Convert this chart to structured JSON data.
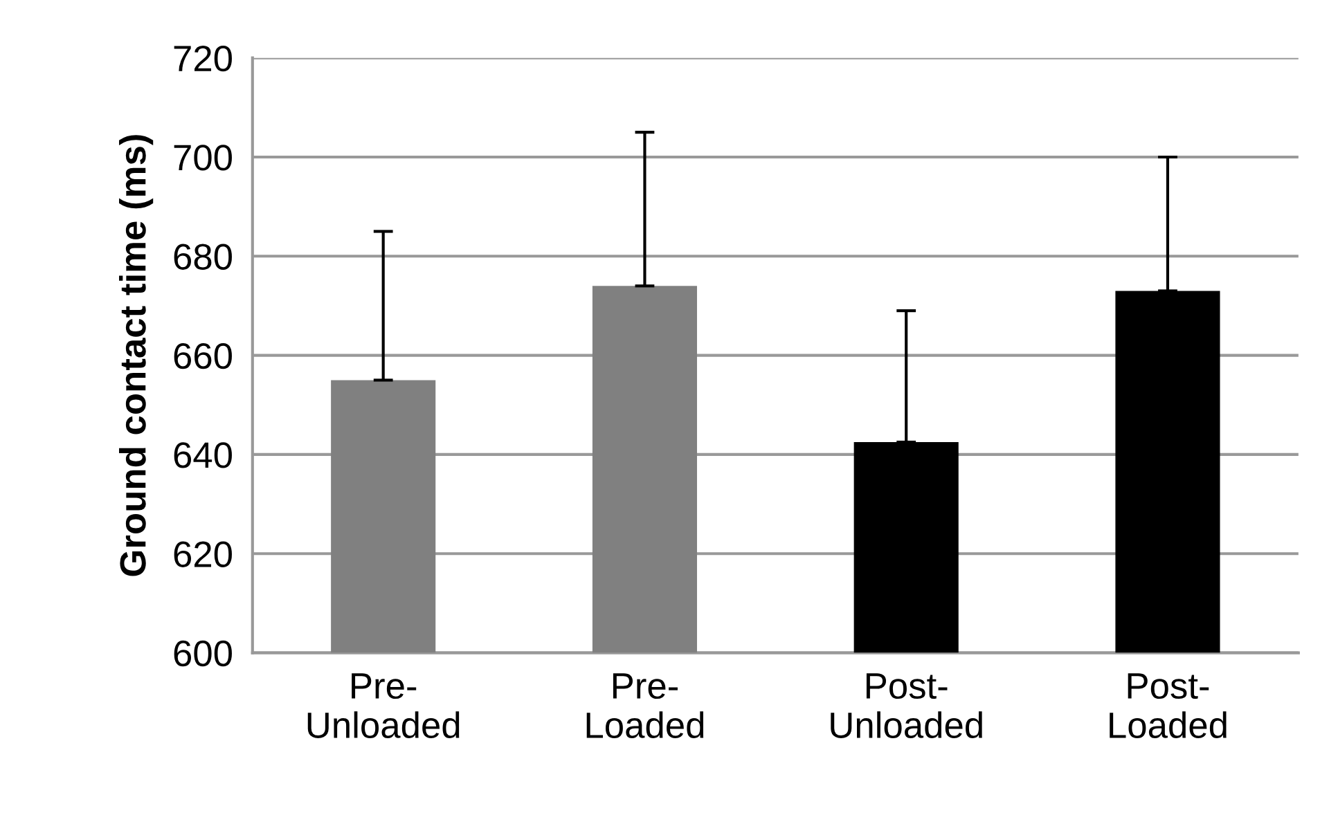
{
  "chart_data": {
    "type": "bar",
    "ylabel": "Ground contact time (ms)",
    "categories": [
      "Pre-\nUnloaded",
      "Pre-\nLoaded",
      "Post-\nUnloaded",
      "Post-\nLoaded"
    ],
    "values": [
      655,
      674,
      642.5,
      673
    ],
    "colors": [
      "#808080",
      "#808080",
      "#000000",
      "#000000"
    ],
    "errors": [
      [
        655,
        685
      ],
      [
        674,
        705
      ],
      [
        642.5,
        669
      ],
      [
        673,
        700
      ]
    ],
    "ylim": [
      600,
      720
    ],
    "yticks": [
      600,
      620,
      640,
      660,
      680,
      700,
      720
    ],
    "grid": "y"
  }
}
